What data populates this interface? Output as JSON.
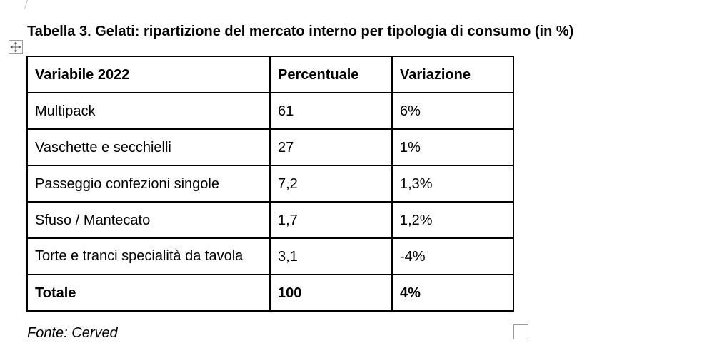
{
  "document": {
    "caption": "Tabella 3. Gelati: ripartizione del mercato interno per tipologia di consumo (in %)",
    "source": "Fonte: Cerved"
  },
  "table": {
    "headers": [
      "Variabile 2022",
      "Percentuale",
      "Variazione"
    ],
    "rows": [
      {
        "label": "Multipack",
        "percentuale": "61",
        "variazione": "6%"
      },
      {
        "label": "Vaschette e secchielli",
        "percentuale": "27",
        "variazione": "1%"
      },
      {
        "label": "Passeggio confezioni singole",
        "percentuale": "7,2",
        "variazione": "1,3%"
      },
      {
        "label": "Sfuso / Mantecato",
        "percentuale": "1,7",
        "variazione": "1,2%"
      },
      {
        "label": "Torte e tranci specialità da tavola",
        "percentuale": "3,1",
        "variazione": "-4%"
      }
    ],
    "total": {
      "label": "Totale",
      "percentuale": "100",
      "variazione": "4%"
    }
  },
  "icons": {
    "table_move": "move-arrows-icon",
    "table_resize": "resize-square-icon"
  }
}
